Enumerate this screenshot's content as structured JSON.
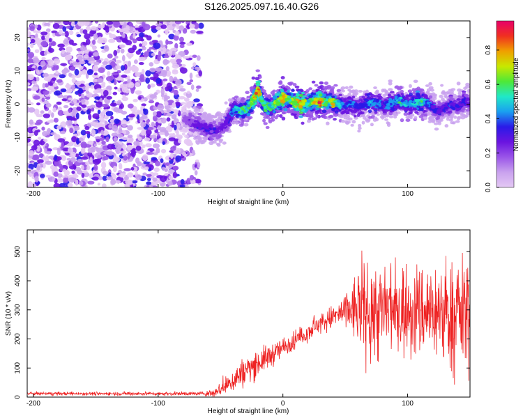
{
  "title": "S126.2025.097.16.40.G26",
  "colors": {
    "snr_line": "#ee2222",
    "colormap": [
      "#e4c8f4",
      "#c9a2ee",
      "#9a55e8",
      "#6a14e0",
      "#2a1ae8",
      "#1aa0f0",
      "#20e8c8",
      "#4ee838",
      "#c8e800",
      "#f0a000",
      "#f03020",
      "#e8006a"
    ]
  },
  "chart_data": [
    {
      "type": "heatmap",
      "xlabel": "Height of straight line (km)",
      "ylabel": "Frequency (Hz)",
      "xlim": [
        -205,
        150
      ],
      "ylim": [
        -25,
        25
      ],
      "xticks": [
        -200,
        -100,
        0,
        100
      ],
      "yticks": [
        -20,
        -10,
        0,
        10,
        20
      ],
      "colorbar": {
        "label": "Normalized spectral amplitude",
        "ticks": [
          "0.0",
          "0.2",
          "0.4",
          "0.6",
          "0.8"
        ],
        "tick_values": [
          0,
          0.2,
          0.4,
          0.6,
          0.8
        ],
        "range": [
          0,
          0.97
        ]
      },
      "noise_region_x": [
        -205,
        -65
      ],
      "ridge": {
        "x": [
          -80,
          -70,
          -60,
          -52,
          -46,
          -42,
          -38,
          -34,
          -30,
          -26,
          -22,
          -20,
          -17,
          -14,
          -10,
          -5,
          0,
          5,
          10,
          15,
          20,
          25,
          30,
          35,
          40,
          45,
          50,
          55,
          60,
          65,
          70,
          75,
          80,
          85,
          90,
          95,
          100,
          105,
          110,
          115,
          120,
          125,
          130,
          135,
          140,
          145,
          150
        ],
        "y": [
          -4,
          -6,
          -7.5,
          -8,
          -6,
          -3,
          -1.5,
          -2,
          -1.5,
          0,
          2.5,
          4.5,
          1,
          -1,
          -1,
          0.5,
          2,
          1.5,
          0.5,
          0,
          0.5,
          1,
          1,
          0.5,
          0.5,
          0,
          -0.5,
          0,
          -1,
          0,
          0.5,
          0.5,
          -0.5,
          0,
          0.5,
          1,
          0,
          0.5,
          0.5,
          0.5,
          -1,
          -2,
          -1,
          0,
          -1,
          1,
          0
        ],
        "amp": [
          0.2,
          0.3,
          0.35,
          0.3,
          0.3,
          0.4,
          0.5,
          0.6,
          0.55,
          0.65,
          0.8,
          0.85,
          0.6,
          0.6,
          0.55,
          0.7,
          0.8,
          0.6,
          0.75,
          0.85,
          0.6,
          0.7,
          0.9,
          0.55,
          0.75,
          0.5,
          0.4,
          0.45,
          0.35,
          0.4,
          0.5,
          0.45,
          0.4,
          0.45,
          0.5,
          0.55,
          0.45,
          0.5,
          0.6,
          0.45,
          0.4,
          0.35,
          0.35,
          0.4,
          0.35,
          0.35,
          0.3
        ]
      }
    },
    {
      "type": "line",
      "xlabel": "Height of straight line (km)",
      "ylabel": "SNR (10 * v/v)",
      "xlim": [
        -205,
        150
      ],
      "ylim": [
        0,
        575
      ],
      "xticks": [
        -200,
        -100,
        0,
        100
      ],
      "yticks": [
        0,
        100,
        200,
        300,
        400,
        500
      ],
      "series": [
        {
          "x": [
            -205,
            -65,
            -55,
            -45,
            -35,
            -25,
            -15,
            -5,
            5,
            15,
            25,
            35,
            45,
            55,
            65,
            75,
            85,
            95,
            105,
            115,
            125,
            135,
            145,
            150
          ],
          "mean": [
            12,
            12,
            15,
            40,
            75,
            105,
            130,
            155,
            185,
            210,
            240,
            265,
            285,
            300,
            300,
            295,
            290,
            300,
            295,
            300,
            290,
            280,
            290,
            280
          ],
          "spread": [
            5,
            6,
            15,
            30,
            45,
            45,
            40,
            35,
            30,
            30,
            30,
            35,
            40,
            90,
            150,
            160,
            160,
            150,
            150,
            150,
            160,
            170,
            180,
            160
          ]
        }
      ]
    }
  ]
}
